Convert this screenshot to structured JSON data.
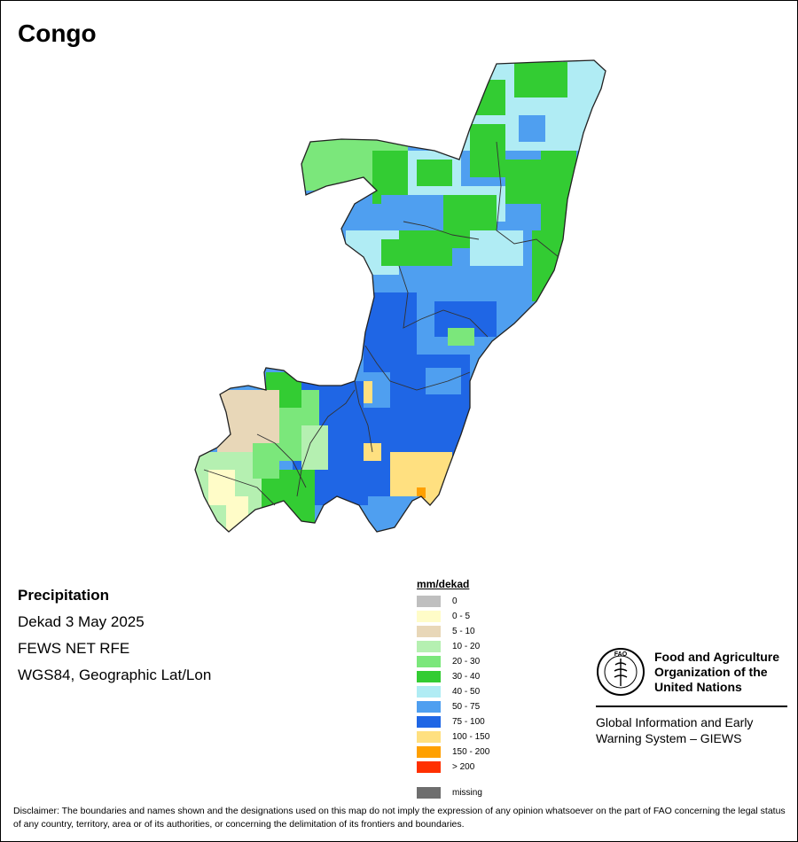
{
  "map": {
    "title": "Congo",
    "accent_colors": {
      "border": "#222222"
    }
  },
  "info": {
    "variable": "Precipitation",
    "period": "Dekad 3 May 2025",
    "source": "FEWS NET RFE",
    "projection": "WGS84, Geographic Lat/Lon"
  },
  "legend": {
    "title": "mm/dekad",
    "classes": [
      {
        "label": "0",
        "color": "#bfbfbf"
      },
      {
        "label": "0 - 5",
        "color": "#fffcc8"
      },
      {
        "label": "5 - 10",
        "color": "#e8d7b8"
      },
      {
        "label": "10 - 20",
        "color": "#b5f0b1"
      },
      {
        "label": "20 - 30",
        "color": "#7be77b"
      },
      {
        "label": "30 - 40",
        "color": "#33cc33"
      },
      {
        "label": "40 - 50",
        "color": "#b0ecf4"
      },
      {
        "label": "50 - 75",
        "color": "#4f9ff0"
      },
      {
        "label": "75 - 100",
        "color": "#1f66e5"
      },
      {
        "label": "100 - 150",
        "color": "#ffe080"
      },
      {
        "label": "150 - 200",
        "color": "#ffa000"
      },
      {
        "label": "> 200",
        "color": "#ff3000"
      }
    ],
    "missing": {
      "label": "missing",
      "color": "#6e6e6e"
    }
  },
  "logo": {
    "org_line1": "Food and Agriculture",
    "org_line2": "Organization of the",
    "org_line3": "United Nations",
    "system_line1": "Global Information and Early",
    "system_line2": "Warning System – GIEWS",
    "emblem_text": "FAO"
  },
  "disclaimer": "Disclaimer: The boundaries and names shown and the designations used on this map do not imply the expression of any opinion whatsoever on the part of FAO concerning the legal status of any country, territory, area or of its authorities, or concerning the delimitation of its frontiers and boundaries."
}
